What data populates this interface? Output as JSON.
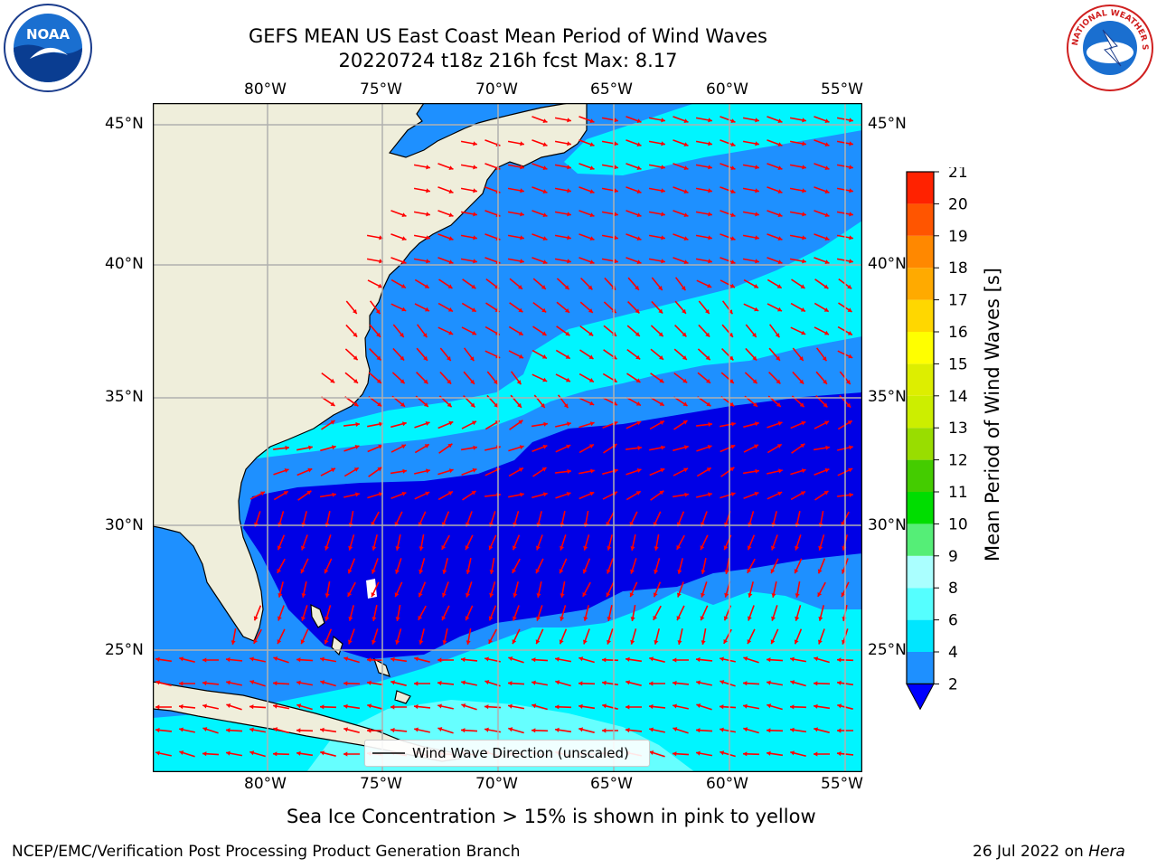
{
  "title": {
    "line1": "GEFS MEAN US East Coast Mean Period of Wind Waves",
    "line2": "20220724 t18z 216h fcst   Max: 8.17"
  },
  "map": {
    "lon_labels": [
      "80°W",
      "75°W",
      "70°W",
      "65°W",
      "60°W",
      "55°W"
    ],
    "lat_labels": [
      "45°N",
      "40°N",
      "35°N",
      "30°N",
      "25°N"
    ],
    "legend_label": "Wind Wave Direction (unscaled)",
    "colors": {
      "land": "#efeedb",
      "ocean_low": "#0000e6",
      "ocean_mid": "#1e90ff",
      "ocean_high": "#00f5ff",
      "ocean_top": "#66ffff",
      "arrow": "#ff0000",
      "grid": "#b0b0b0"
    }
  },
  "colorbar": {
    "label": "Mean Period of Wind Waves [s]",
    "ticks": [
      "2",
      "4",
      "6",
      "8",
      "9",
      "10",
      "11",
      "12",
      "13",
      "14",
      "15",
      "16",
      "17",
      "18",
      "19",
      "20",
      "21"
    ],
    "bands": [
      "#1e90ff",
      "#00e6ff",
      "#55ffff",
      "#aaffff",
      "#55ee77",
      "#00dd00",
      "#44cc00",
      "#99dd00",
      "#ccee00",
      "#ddee00",
      "#ffff00",
      "#ffd700",
      "#ffaa00",
      "#ff8800",
      "#ff5500",
      "#ff2200",
      "#ff0000"
    ],
    "underflow_color": "#0000ff"
  },
  "notes": {
    "sea_ice": "Sea Ice Concentration > 15% is shown in pink to yellow",
    "branch": "NCEP/EMC/Verification Post Processing Product Generation Branch",
    "date": "26 Jul 2022 on ",
    "host": "Hera"
  },
  "logos": {
    "noaa": "NOAA",
    "nws": "NATIONAL WEATHER SERVICE"
  }
}
